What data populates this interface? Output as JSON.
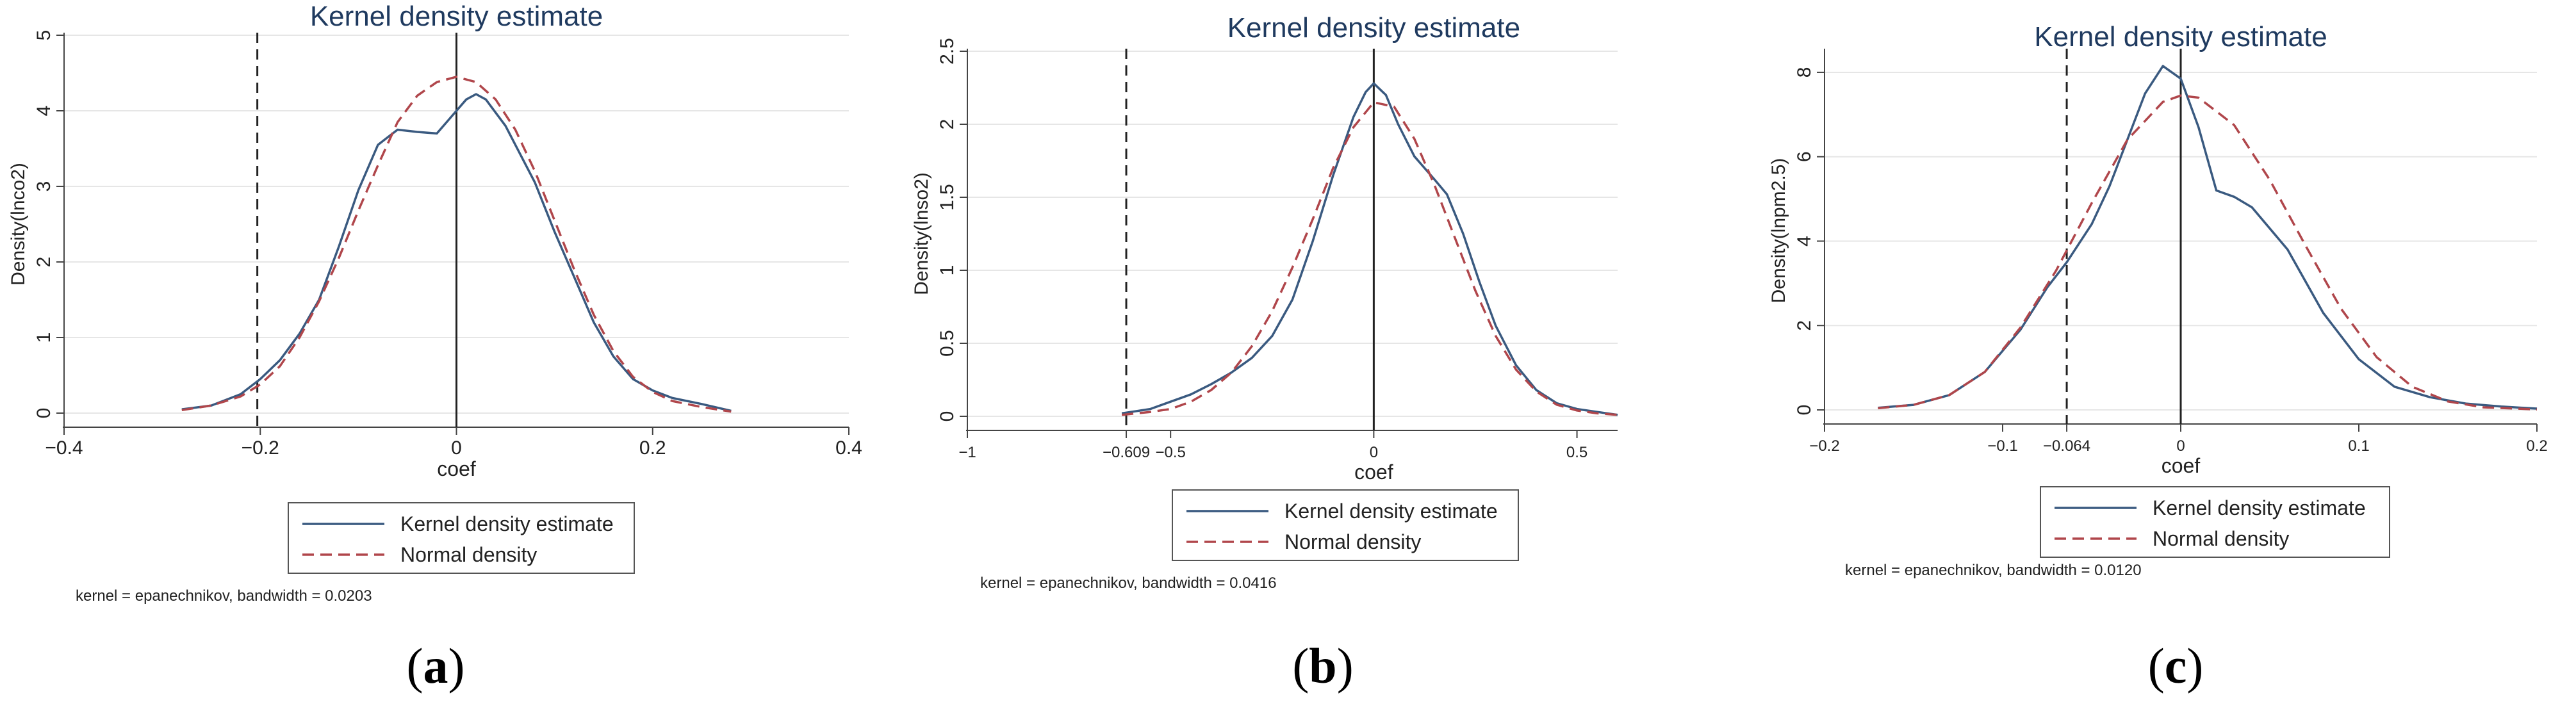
{
  "figure": {
    "labels": [
      "a",
      "b",
      "c"
    ]
  },
  "style": {
    "kde_color": "#3a5a80",
    "normal_color": "#b0464b",
    "title_color": "#1f3a5f",
    "grid_color": "#e6e6e6",
    "axis_color": "#444444",
    "panel_bg": "#ffffff"
  },
  "chart_data": [
    {
      "type": "line",
      "title": "Kernel density estimate",
      "xlabel": "coef",
      "ylabel": "Density(lnco2)",
      "xlim": [
        -0.4,
        0.4
      ],
      "ylim": [
        0,
        5
      ],
      "xticks": [
        -0.4,
        -0.2,
        0,
        0.2,
        0.4
      ],
      "xtick_labels": [
        "−0.4",
        "−0.2",
        "0",
        "0.2",
        "0.4"
      ],
      "yticks": [
        0,
        1,
        2,
        3,
        4,
        5
      ],
      "ytick_labels": [
        "0",
        "1",
        "2",
        "3",
        "4",
        "5"
      ],
      "vlines": [
        {
          "x": -0.203,
          "style": "dashed"
        },
        {
          "x": 0,
          "style": "solid"
        }
      ],
      "legend": [
        "Kernel density estimate",
        "Normal density"
      ],
      "note": "kernel = epanechnikov, bandwidth = 0.0203",
      "series": [
        {
          "name": "Kernel density estimate",
          "x": [
            -0.28,
            -0.25,
            -0.22,
            -0.2,
            -0.18,
            -0.16,
            -0.14,
            -0.12,
            -0.1,
            -0.08,
            -0.07,
            -0.06,
            -0.04,
            -0.02,
            0.0,
            0.01,
            0.02,
            0.03,
            0.05,
            0.08,
            0.1,
            0.12,
            0.14,
            0.16,
            0.18,
            0.2,
            0.22,
            0.25,
            0.28
          ],
          "y": [
            0.05,
            0.1,
            0.25,
            0.45,
            0.7,
            1.05,
            1.5,
            2.2,
            2.95,
            3.55,
            3.65,
            3.75,
            3.72,
            3.7,
            4.0,
            4.15,
            4.22,
            4.15,
            3.8,
            3.05,
            2.4,
            1.8,
            1.2,
            0.75,
            0.45,
            0.3,
            0.2,
            0.12,
            0.03
          ]
        },
        {
          "name": "Normal density",
          "x": [
            -0.28,
            -0.25,
            -0.22,
            -0.2,
            -0.18,
            -0.16,
            -0.14,
            -0.12,
            -0.1,
            -0.08,
            -0.06,
            -0.04,
            -0.02,
            0.0,
            0.02,
            0.04,
            0.06,
            0.08,
            0.1,
            0.12,
            0.14,
            0.16,
            0.18,
            0.2,
            0.22,
            0.25,
            0.28
          ],
          "y": [
            0.04,
            0.1,
            0.22,
            0.38,
            0.62,
            1.0,
            1.48,
            2.05,
            2.68,
            3.28,
            3.85,
            4.2,
            4.38,
            4.45,
            4.38,
            4.15,
            3.75,
            3.2,
            2.55,
            1.9,
            1.3,
            0.82,
            0.48,
            0.28,
            0.16,
            0.08,
            0.02
          ]
        }
      ]
    },
    {
      "type": "line",
      "title": "Kernel density estimate",
      "xlabel": "coef",
      "ylabel": "Density(lnso2)",
      "xlim": [
        -1,
        0.6
      ],
      "ylim": [
        0,
        2.5
      ],
      "xticks": [
        -1,
        -0.609,
        -0.5,
        0,
        0.5
      ],
      "xtick_labels": [
        "−1",
        "−0.609",
        "−0.5",
        "0",
        "0.5"
      ],
      "yticks": [
        0,
        0.5,
        1,
        1.5,
        2,
        2.5
      ],
      "ytick_labels": [
        "0",
        "0.5",
        "1",
        "1.5",
        "2",
        "2.5"
      ],
      "vlines": [
        {
          "x": -0.609,
          "style": "dashed"
        },
        {
          "x": 0,
          "style": "solid"
        }
      ],
      "legend": [
        "Kernel density estimate",
        "Normal density"
      ],
      "note": "kernel = epanechnikov, bandwidth = 0.0416",
      "series": [
        {
          "name": "Kernel density estimate",
          "x": [
            -0.62,
            -0.55,
            -0.5,
            -0.45,
            -0.4,
            -0.35,
            -0.3,
            -0.25,
            -0.2,
            -0.15,
            -0.1,
            -0.05,
            -0.02,
            0.0,
            0.03,
            0.06,
            0.1,
            0.15,
            0.18,
            0.22,
            0.26,
            0.3,
            0.35,
            0.4,
            0.45,
            0.5,
            0.55,
            0.6
          ],
          "y": [
            0.02,
            0.05,
            0.1,
            0.15,
            0.22,
            0.3,
            0.4,
            0.55,
            0.8,
            1.2,
            1.65,
            2.05,
            2.22,
            2.28,
            2.2,
            2.0,
            1.78,
            1.62,
            1.52,
            1.25,
            0.92,
            0.62,
            0.35,
            0.18,
            0.09,
            0.05,
            0.03,
            0.01
          ]
        },
        {
          "name": "Normal density",
          "x": [
            -0.62,
            -0.55,
            -0.5,
            -0.45,
            -0.4,
            -0.35,
            -0.3,
            -0.25,
            -0.2,
            -0.15,
            -0.1,
            -0.05,
            0.0,
            0.05,
            0.1,
            0.15,
            0.2,
            0.25,
            0.3,
            0.35,
            0.4,
            0.45,
            0.5,
            0.55,
            0.6
          ],
          "y": [
            0.01,
            0.03,
            0.05,
            0.1,
            0.18,
            0.3,
            0.48,
            0.72,
            1.02,
            1.35,
            1.7,
            1.98,
            2.15,
            2.12,
            1.9,
            1.58,
            1.22,
            0.86,
            0.55,
            0.32,
            0.17,
            0.08,
            0.04,
            0.02,
            0.01
          ]
        }
      ]
    },
    {
      "type": "line",
      "title": "Kernel density estimate",
      "xlabel": "coef",
      "ylabel": "Density(lnpm2.5)",
      "xlim": [
        -0.2,
        0.2
      ],
      "ylim": [
        0,
        8.5
      ],
      "xticks": [
        -0.2,
        -0.1,
        -0.064,
        0,
        0.1,
        0.2
      ],
      "xtick_labels": [
        "−0.2",
        "−0.1",
        "−0.064",
        "0",
        "0.1",
        "0.2"
      ],
      "yticks": [
        0,
        2,
        4,
        6,
        8
      ],
      "ytick_labels": [
        "0",
        "2",
        "4",
        "6",
        "8"
      ],
      "vlines": [
        {
          "x": -0.064,
          "style": "dashed"
        },
        {
          "x": 0,
          "style": "solid"
        }
      ],
      "legend": [
        "Kernel density estimate",
        "Normal density"
      ],
      "note": "kernel = epanechnikov, bandwidth = 0.0120",
      "series": [
        {
          "name": "Kernel density estimate",
          "x": [
            -0.17,
            -0.15,
            -0.13,
            -0.11,
            -0.09,
            -0.075,
            -0.064,
            -0.05,
            -0.04,
            -0.03,
            -0.02,
            -0.01,
            0.0,
            0.01,
            0.02,
            0.03,
            0.04,
            0.06,
            0.08,
            0.1,
            0.12,
            0.14,
            0.16,
            0.18,
            0.2
          ],
          "y": [
            0.05,
            0.12,
            0.35,
            0.9,
            1.9,
            2.9,
            3.5,
            4.4,
            5.3,
            6.4,
            7.5,
            8.15,
            7.85,
            6.7,
            5.2,
            5.05,
            4.8,
            3.8,
            2.3,
            1.2,
            0.55,
            0.3,
            0.15,
            0.08,
            0.03
          ]
        },
        {
          "name": "Normal density",
          "x": [
            -0.17,
            -0.15,
            -0.13,
            -0.11,
            -0.09,
            -0.07,
            -0.05,
            -0.03,
            -0.01,
            0.0,
            0.01,
            0.03,
            0.05,
            0.07,
            0.09,
            0.11,
            0.13,
            0.15,
            0.17,
            0.2
          ],
          "y": [
            0.04,
            0.12,
            0.35,
            0.9,
            1.95,
            3.3,
            4.9,
            6.4,
            7.3,
            7.45,
            7.4,
            6.75,
            5.45,
            3.9,
            2.4,
            1.25,
            0.55,
            0.2,
            0.06,
            0.01
          ]
        }
      ]
    }
  ]
}
